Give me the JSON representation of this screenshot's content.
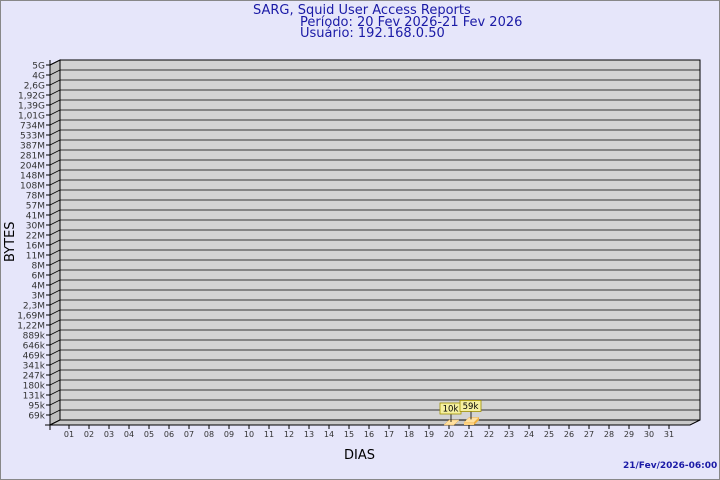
{
  "title": "SARG, Squid User Access Reports",
  "period": "Período: 20 Fev 2026-21 Fev 2026",
  "user": "Usuário: 192.168.0.50",
  "timestamp": "21/Fev/2026-06:00",
  "chart_data": {
    "type": "bar",
    "xlabel": "DIAS",
    "ylabel": "BYTES",
    "y_scale": "log",
    "y_ticks": [
      "5G",
      "4G",
      "2,6G",
      "1,92G",
      "1,39G",
      "1,01G",
      "734M",
      "533M",
      "387M",
      "281M",
      "204M",
      "148M",
      "108M",
      "78M",
      "57M",
      "41M",
      "30M",
      "22M",
      "16M",
      "11M",
      "8M",
      "6M",
      "4M",
      "3M",
      "2,3M",
      "1,69M",
      "1,22M",
      "889k",
      "646k",
      "469k",
      "341k",
      "247k",
      "180k",
      "131k",
      "95k",
      "69k"
    ],
    "categories": [
      "01",
      "02",
      "03",
      "04",
      "05",
      "06",
      "07",
      "08",
      "09",
      "10",
      "11",
      "12",
      "13",
      "14",
      "15",
      "16",
      "17",
      "18",
      "19",
      "20",
      "21",
      "22",
      "23",
      "24",
      "25",
      "26",
      "27",
      "28",
      "29",
      "30",
      "31"
    ],
    "bars": [
      {
        "day": "20",
        "value": "10k"
      },
      {
        "day": "21",
        "value": "59k"
      }
    ],
    "grid": true,
    "colors": {
      "wall": "#d3d3d3",
      "bar": "#ffd27f",
      "label_bg": "#f5f0a0",
      "text": "#1a1aa6"
    }
  }
}
